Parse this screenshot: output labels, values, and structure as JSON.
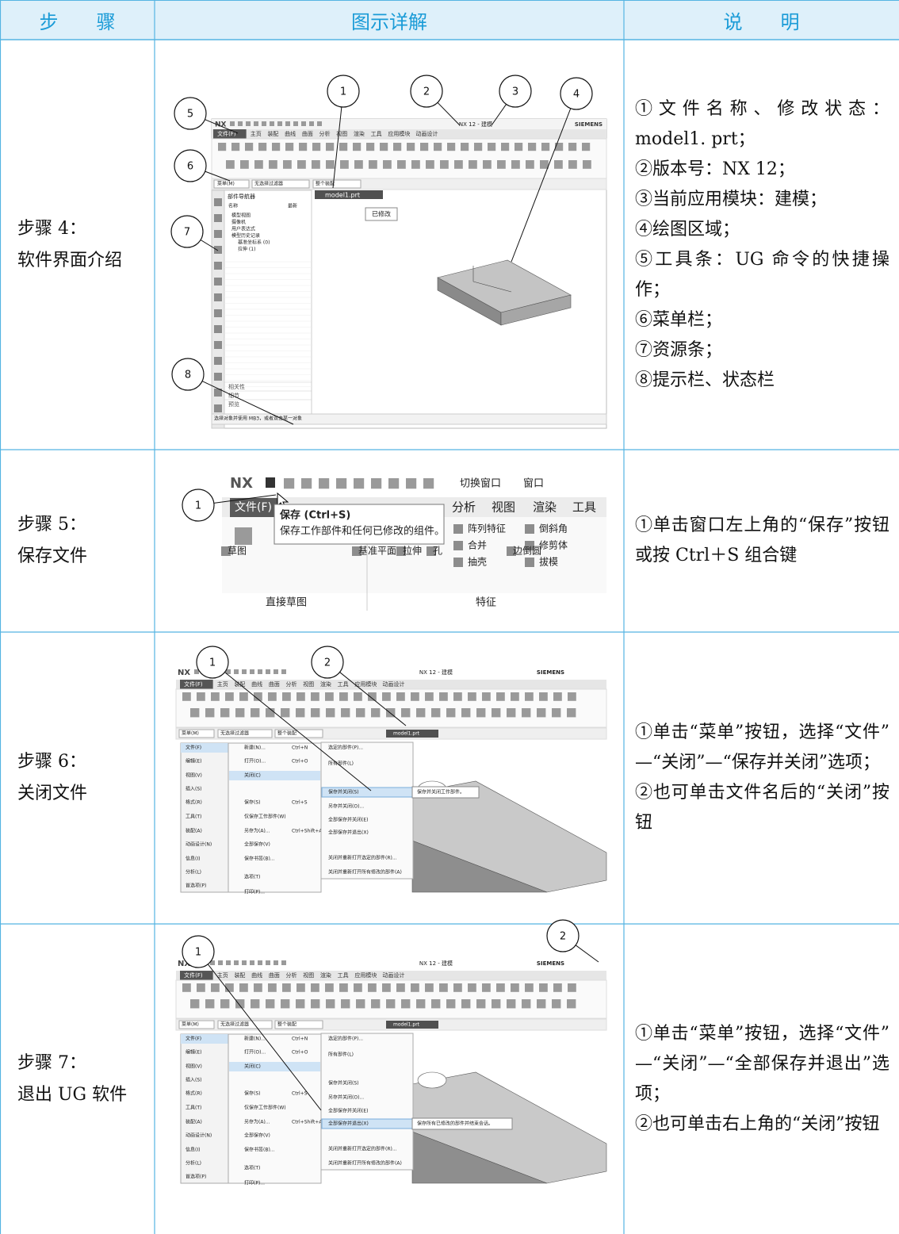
{
  "table": {
    "header": [
      "步　　骤",
      "图示详解",
      "说　　明"
    ],
    "rows": [
      {
        "step": [
          "步骤 4：",
          "软件界面介绍"
        ],
        "screen": {
          "logo": "NX",
          "title": "NX 12 - 建模",
          "brand": "SIEMENS",
          "tabs": [
            "文件(F)",
            "主页",
            "装配",
            "曲线",
            "曲面",
            "分析",
            "视图",
            "渲染",
            "工具",
            "应用模块",
            "动画设计"
          ],
          "filter": [
            "菜单(M)",
            "无选择过滤器",
            "整个装配"
          ],
          "doc_tab": "model1.prt",
          "modified_tip": "已修改",
          "navigator": "部件导航器",
          "nav_columns": [
            "名称",
            "最新"
          ],
          "tree": [
            "模型视图",
            "摄像机",
            "用户表达式",
            "模型历史记录",
            "基准坐标系 (0)",
            "拉伸 (1)"
          ],
          "panels": [
            "相关性",
            "细节",
            "预览"
          ],
          "status": "选择对象并使用 MB3，或者双击某一对象",
          "callouts": [
            "1",
            "2",
            "3",
            "4",
            "5",
            "6",
            "7",
            "8"
          ]
        },
        "notes": [
          "①文件名称、修改状态：model1. prt；",
          "②版本号：NX 12；",
          "③当前应用模块：建模；",
          "④绘图区域；",
          "⑤工具条：UG 命令的快捷操作；",
          "⑥菜单栏；",
          "⑦资源条；",
          "⑧提示栏、状态栏"
        ]
      },
      {
        "step": [
          "步骤 5：",
          "保存文件"
        ],
        "screen": {
          "logo": "NX",
          "quick": [
            "切换窗口",
            "窗口"
          ],
          "tabs": [
            "文件(F)",
            "分析",
            "视图",
            "渲染",
            "工具"
          ],
          "tooltip_title": "保存 (Ctrl+S)",
          "tooltip_text": "保存工作部件和任何已修改的组件。",
          "features": [
            "阵列特征",
            "倒斜角",
            "合并",
            "修剪体",
            "抽壳",
            "拔模",
            "基准平面",
            "拉伸",
            "孔",
            "边倒圆",
            "草图"
          ],
          "groups": [
            "直接草图",
            "特征"
          ],
          "callouts": [
            "1"
          ]
        },
        "notes": [
          "①单击窗口左上角的“保存”按钮或按 Ctrl＋S 组合键"
        ]
      },
      {
        "step": [
          "步骤 6：",
          "关闭文件"
        ],
        "screen": {
          "logo": "NX",
          "title": "NX 12 - 建模",
          "brand": "SIEMENS",
          "tabs": [
            "文件(F)",
            "主页",
            "装配",
            "曲线",
            "曲面",
            "分析",
            "视图",
            "渲染",
            "工具",
            "应用模块",
            "动画设计"
          ],
          "filter": [
            "菜单(M)",
            "无选择过滤器",
            "整个装配"
          ],
          "doc_tab": "model1.prt",
          "menu": [
            "文件(F)",
            "编辑(E)",
            "视图(V)",
            "插入(S)",
            "格式(R)",
            "工具(T)",
            "装配(A)",
            "动画设计(N)",
            "信息(I)",
            "分析(L)",
            "首选项(P)"
          ],
          "file_menu": [
            {
              "label": "新建(N)...",
              "key": "Ctrl+N"
            },
            {
              "label": "打开(O)...",
              "key": "Ctrl+O"
            },
            {
              "label": "关闭(C)"
            },
            {
              "label": "保存(S)",
              "key": "Ctrl+S"
            },
            {
              "label": "仅保存工作部件(W)"
            },
            {
              "label": "另存为(A)...",
              "key": "Ctrl+Shift+A"
            },
            {
              "label": "全部保存(V)"
            },
            {
              "label": "保存书签(B)..."
            },
            {
              "label": "选项(T)"
            },
            {
              "label": "打印(P)..."
            }
          ],
          "close_menu": [
            "选定的部件(P)...",
            "所有部件(L)",
            "保存并关闭(S)",
            "另存并关闭(O)...",
            "全部保存并关闭(E)",
            "全部保存并退出(X)",
            "关闭并重新打开选定的部件(R)...",
            "关闭并重新打开所有修改的部件(A)"
          ],
          "highlight": 2,
          "tip": "保存并关闭工作部件。",
          "callouts": [
            "1",
            "2"
          ]
        },
        "notes": [
          "①单击“菜单”按钮，选择“文件”—“关闭”—“保存并关闭”选项；",
          "②也可单击文件名后的“关闭”按钮"
        ]
      },
      {
        "step": [
          "步骤 7：",
          "退出 UG 软件"
        ],
        "screen": {
          "logo": "NX",
          "title": "NX 12 - 建模",
          "brand": "SIEMENS",
          "tabs": [
            "文件(F)",
            "主页",
            "装配",
            "曲线",
            "曲面",
            "分析",
            "视图",
            "渲染",
            "工具",
            "应用模块",
            "动画设计"
          ],
          "filter": [
            "菜单(M)",
            "无选择过滤器",
            "整个装配"
          ],
          "doc_tab": "model1.prt",
          "menu": [
            "文件(F)",
            "编辑(E)",
            "视图(V)",
            "插入(S)",
            "格式(R)",
            "工具(T)",
            "装配(A)",
            "动画设计(N)",
            "信息(I)",
            "分析(L)",
            "首选项(P)"
          ],
          "file_menu": [
            {
              "label": "新建(N)...",
              "key": "Ctrl+N"
            },
            {
              "label": "打开(O)...",
              "key": "Ctrl+O"
            },
            {
              "label": "关闭(C)"
            },
            {
              "label": "保存(S)",
              "key": "Ctrl+S"
            },
            {
              "label": "仅保存工作部件(W)"
            },
            {
              "label": "另存为(A)...",
              "key": "Ctrl+Shift+A"
            },
            {
              "label": "全部保存(V)"
            },
            {
              "label": "保存书签(B)..."
            },
            {
              "label": "选项(T)"
            },
            {
              "label": "打印(P)..."
            }
          ],
          "close_menu": [
            "选定的部件(P)...",
            "所有部件(L)",
            "保存并关闭(S)",
            "另存并关闭(O)...",
            "全部保存并关闭(E)",
            "全部保存并退出(X)",
            "关闭并重新打开选定的部件(R)...",
            "关闭并重新打开所有修改的部件(A)"
          ],
          "highlight": 5,
          "tip": "保存所有已修改的部件并结束会话。",
          "callouts": [
            "1",
            "2"
          ]
        },
        "notes": [
          "①单击“菜单”按钮，选择“文件”—“关闭”—“全部保存并退出”选项；",
          "②也可单击右上角的“关闭”按钮"
        ]
      }
    ]
  }
}
